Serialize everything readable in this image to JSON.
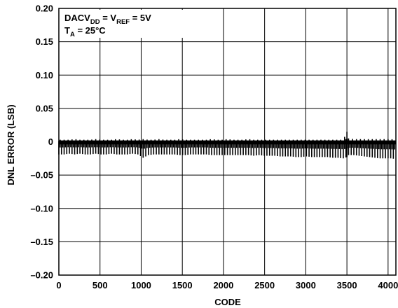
{
  "chart_data": {
    "type": "line",
    "title": "",
    "xlabel": "CODE",
    "ylabel": "DNL ERROR (LSB)",
    "xlim": [
      0,
      4095
    ],
    "ylim": [
      -0.2,
      0.2
    ],
    "grid": true,
    "x_ticks": [
      0,
      500,
      1000,
      1500,
      2000,
      2500,
      3000,
      3500,
      4000
    ],
    "x_tick_labels": [
      "0",
      "500",
      "1000",
      "1500",
      "2000",
      "2500",
      "3000",
      "3500",
      "4000"
    ],
    "y_ticks": [
      0.2,
      0.15,
      0.1,
      0.05,
      0,
      -0.05,
      -0.1,
      -0.15,
      -0.2
    ],
    "y_tick_labels": [
      "0.20",
      "0.15",
      "0.10",
      "0.05",
      "0",
      "–0.05",
      "–0.10",
      "–0.15",
      "–0.20"
    ],
    "annotations": {
      "line1": {
        "a": "DACV",
        "a_sub": "DD",
        "b": " = V",
        "b_sub": "REF",
        "c": " = 5V"
      },
      "line2": {
        "a": "T",
        "a_sub": "A",
        "b": " = 25°C"
      }
    },
    "series": [
      {
        "name": "",
        "x": [
          0,
          64,
          128,
          192,
          256,
          320,
          384,
          448,
          512,
          576,
          640,
          704,
          768,
          832,
          896,
          960,
          1024,
          1088,
          1152,
          1216,
          1280,
          1344,
          1408,
          1472,
          1536,
          1600,
          1664,
          1728,
          1792,
          1856,
          1920,
          1984,
          2048,
          2112,
          2176,
          2240,
          2304,
          2368,
          2432,
          2496,
          2560,
          2624,
          2688,
          2752,
          2816,
          2880,
          2944,
          3008,
          3072,
          3136,
          3200,
          3264,
          3328,
          3392,
          3456,
          3500,
          3520,
          3584,
          3648,
          3712,
          3776,
          3840,
          3904,
          3968,
          4032,
          4095
        ],
        "max": [
          0.003,
          0.003,
          0.003,
          0.004,
          0.003,
          0.003,
          0.003,
          0.004,
          0.003,
          0.003,
          0.003,
          0.004,
          0.003,
          0.003,
          0.004,
          0.003,
          0.004,
          0.003,
          0.003,
          0.004,
          0.003,
          0.003,
          0.003,
          0.004,
          0.003,
          0.003,
          0.003,
          0.003,
          0.003,
          0.004,
          0.003,
          0.003,
          0.004,
          0.003,
          0.003,
          0.003,
          0.004,
          0.003,
          0.003,
          0.003,
          0.003,
          0.003,
          0.003,
          0.003,
          0.003,
          0.003,
          0.003,
          0.003,
          0.003,
          0.003,
          0.003,
          0.003,
          0.003,
          0.003,
          0.003,
          0.015,
          0.005,
          0.004,
          0.004,
          0.004,
          0.004,
          0.004,
          0.004,
          0.004,
          0.004,
          0.003
        ],
        "min": [
          -0.019,
          -0.019,
          -0.018,
          -0.019,
          -0.018,
          -0.019,
          -0.019,
          -0.018,
          -0.019,
          -0.019,
          -0.018,
          -0.019,
          -0.019,
          -0.019,
          -0.018,
          -0.019,
          -0.024,
          -0.02,
          -0.019,
          -0.019,
          -0.019,
          -0.019,
          -0.019,
          -0.02,
          -0.02,
          -0.019,
          -0.019,
          -0.019,
          -0.019,
          -0.02,
          -0.02,
          -0.02,
          -0.02,
          -0.02,
          -0.02,
          -0.02,
          -0.02,
          -0.021,
          -0.02,
          -0.021,
          -0.021,
          -0.021,
          -0.022,
          -0.022,
          -0.022,
          -0.023,
          -0.023,
          -0.022,
          -0.023,
          -0.023,
          -0.023,
          -0.023,
          -0.024,
          -0.024,
          -0.025,
          -0.023,
          -0.02,
          -0.02,
          -0.021,
          -0.022,
          -0.023,
          -0.024,
          -0.025,
          -0.025,
          -0.025,
          -0.026
        ]
      }
    ]
  }
}
